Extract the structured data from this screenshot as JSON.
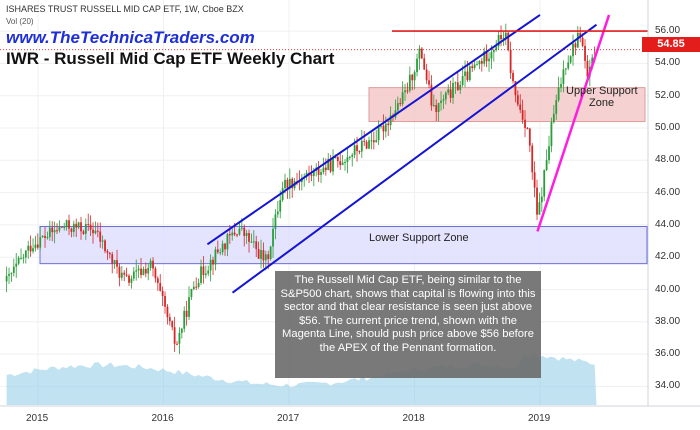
{
  "header": {
    "instrument": "ISHARES TRUST RUSSELL MID CAP ETF, 1W, Cboe BZX",
    "volume_label": "Vol (20)",
    "website": "www.TheTechnicaTraders.com",
    "title": "IWR - Russell Mid Cap ETF Weekly Chart"
  },
  "last_price": "54.85",
  "annotation": "The Russell Mid Cap ETF, being similar to the S&P500 chart, shows that capital is flowing into this sector and that clear resistance is seen just above $56.  The current price trend, shown with the Magenta Line, should push price above $56 before the APEX of the Pennant formation.",
  "zones": {
    "upper_label": "Upper Support Zone",
    "upper_line1": "Upper Support",
    "upper_line2": "Zone",
    "lower_label": "Lower Support Zone"
  },
  "colors": {
    "candle_up": "#2a9d3a",
    "candle_down": "#d62728",
    "channel": "#1414d4",
    "trend_line": "#ff1ee0",
    "resistance": "#e31c1c",
    "upper_zone_fill": "#f4c9c9",
    "lower_zone_fill": "#dcdcff",
    "volume": "#8ecae6"
  },
  "chart_data": {
    "type": "candlestick",
    "interval": "1W",
    "x_ticks": [
      "2015",
      "2016",
      "2017",
      "2018",
      "2019"
    ],
    "y_ticks": [
      "34.00",
      "36.00",
      "38.00",
      "40.00",
      "42.00",
      "44.00",
      "46.00",
      "48.00",
      "50.00",
      "52.00",
      "54.00",
      "56.00"
    ],
    "ylim": [
      33.5,
      57.0
    ],
    "resistance_level": 56.0,
    "last_price": 54.85,
    "upper_support_zone": [
      50.4,
      52.5
    ],
    "lower_support_zone": [
      41.6,
      43.9
    ],
    "channel_upper": [
      {
        "date": "2016.35",
        "price": 42.8
      },
      {
        "date": "2019.0",
        "price": 57.0
      }
    ],
    "channel_lower": [
      {
        "date": "2016.55",
        "price": 39.8
      },
      {
        "date": "2019.45",
        "price": 56.4
      }
    ],
    "magenta_trend": [
      {
        "date": "2018.98",
        "price": 43.6
      },
      {
        "date": "2019.55",
        "price": 57.0
      }
    ],
    "price_path": [
      {
        "date": "2014.75",
        "price": 40.5
      },
      {
        "date": "2014.95",
        "price": 42.8
      },
      {
        "date": "2015.2",
        "price": 43.9
      },
      {
        "date": "2015.45",
        "price": 43.7
      },
      {
        "date": "2015.6",
        "price": 41.6
      },
      {
        "date": "2015.7",
        "price": 40.5
      },
      {
        "date": "2015.9",
        "price": 41.5
      },
      {
        "date": "2016.1",
        "price": 36.5
      },
      {
        "date": "2016.25",
        "price": 40.5
      },
      {
        "date": "2016.45",
        "price": 42.5
      },
      {
        "date": "2016.6",
        "price": 43.8
      },
      {
        "date": "2016.82",
        "price": 41.7
      },
      {
        "date": "2016.95",
        "price": 46.5
      },
      {
        "date": "2017.2",
        "price": 47.2
      },
      {
        "date": "2017.45",
        "price": 48.2
      },
      {
        "date": "2017.7",
        "price": 49.5
      },
      {
        "date": "2017.92",
        "price": 52.0
      },
      {
        "date": "2018.05",
        "price": 54.8
      },
      {
        "date": "2018.15",
        "price": 51.0
      },
      {
        "date": "2018.3",
        "price": 52.3
      },
      {
        "date": "2018.55",
        "price": 54.3
      },
      {
        "date": "2018.72",
        "price": 55.9
      },
      {
        "date": "2018.8",
        "price": 52.0
      },
      {
        "date": "2018.9",
        "price": 50.0
      },
      {
        "date": "2018.98",
        "price": 44.3
      },
      {
        "date": "2019.1",
        "price": 50.5
      },
      {
        "date": "2019.2",
        "price": 54.0
      },
      {
        "date": "2019.32",
        "price": 55.9
      },
      {
        "date": "2019.38",
        "price": 53.0
      },
      {
        "date": "2019.45",
        "price": 54.85
      }
    ]
  }
}
